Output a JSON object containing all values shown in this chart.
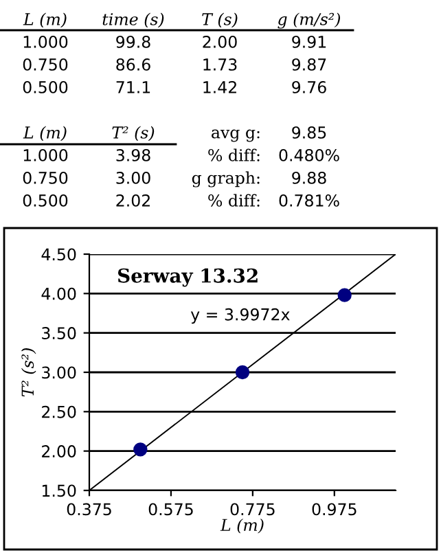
{
  "chart_data": [
    {
      "type": "other",
      "annotations": [
        "L (m)",
        "time (s)",
        "T (s)",
        "g (m/s²)",
        "1.000",
        "99.8",
        "2.00",
        "9.91",
        "0.750",
        "86.6",
        "1.73",
        "9.87",
        "0.500",
        "71.1",
        "1.42",
        "9.76",
        "L (m)",
        "T² (s)",
        "avg g:",
        "9.85",
        "1.000",
        "3.98",
        "% diff:",
        "0.480%",
        "0.750",
        "3.00",
        "g graph:",
        "9.88",
        "0.500",
        "2.02",
        "% diff:",
        "0.781%"
      ]
    },
    {
      "type": "scatter",
      "title": "Serway 13.32",
      "xlabel": "L (m)",
      "ylabel": "T² (s²)",
      "series": [
        {
          "type": "scatter",
          "marker": "circle",
          "color": "#000080",
          "x": [
            0.5,
            0.75,
            1.0
          ],
          "values": [
            2.02,
            3.0,
            3.98
          ]
        },
        {
          "type": "line",
          "color": "#000000",
          "x": [
            0.375,
            1.125
          ],
          "values": [
            1.5,
            4.5
          ]
        }
      ],
      "annotations": [
        "y = 3.9972x"
      ],
      "xlim": [
        0.375,
        1.125
      ],
      "xticks": [
        0.375,
        0.575,
        0.775,
        0.975
      ],
      "ylim": [
        1.5,
        4.5
      ],
      "yticks": [
        {
          "value": 1.5,
          "label": "1.50"
        },
        {
          "value": 2,
          "label": "2.00"
        },
        {
          "value": 2.5,
          "label": "2.50"
        },
        {
          "value": 3,
          "label": "3.00"
        },
        {
          "value": 3.5,
          "label": "3.50"
        },
        {
          "value": 4,
          "label": "4.00"
        },
        {
          "value": 4.5,
          "label": "4.50"
        }
      ],
      "grid": "y"
    }
  ]
}
